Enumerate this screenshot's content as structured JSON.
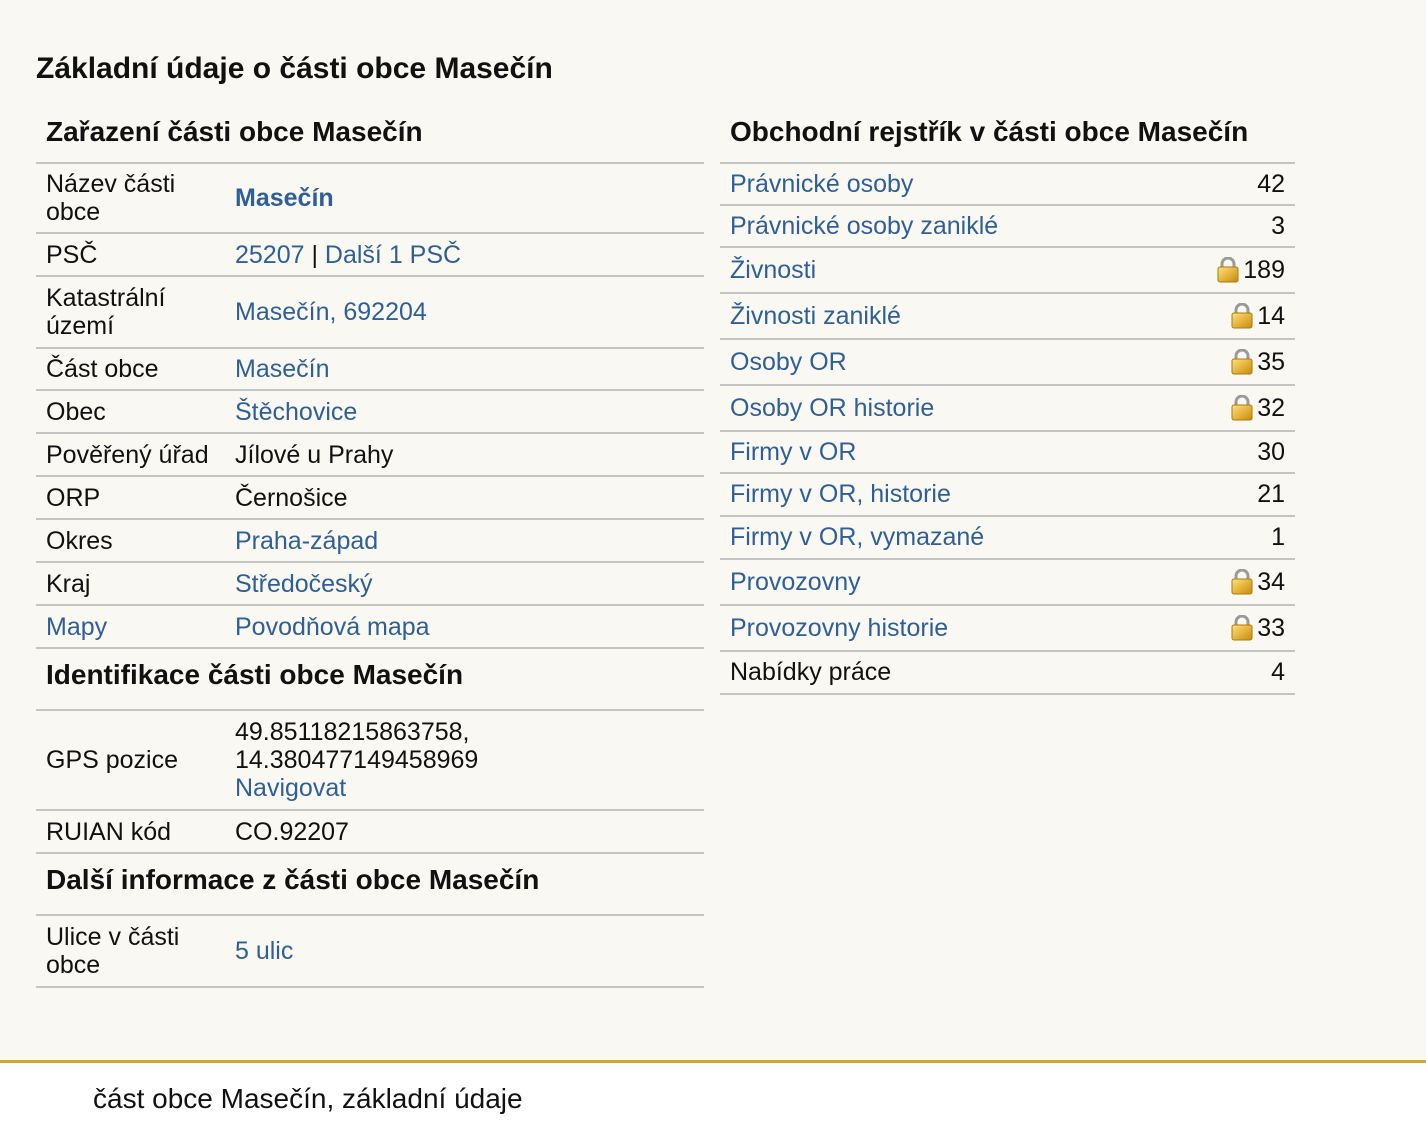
{
  "page_title": "Základní údaje o části obce Masečín",
  "zarazeni": {
    "heading": "Zařazení části obce Masečín",
    "rows": [
      {
        "label": "Název části obce",
        "value": "Masečín"
      },
      {
        "label": "PSČ",
        "value_a": "25207",
        "sep": " | ",
        "value_b": "Další 1 PSČ"
      },
      {
        "label": "Katastrální území",
        "value": "Masečín, 692204"
      },
      {
        "label": "Část obce",
        "value": "Masečín"
      },
      {
        "label": "Obec",
        "value": "Štěchovice"
      },
      {
        "label": "Pověřený úřad",
        "value": "Jílové u Prahy"
      },
      {
        "label": "ORP",
        "value": "Černošice"
      },
      {
        "label": "Okres",
        "value": "Praha-západ"
      },
      {
        "label": "Kraj",
        "value": "Středočeský"
      },
      {
        "label": "Mapy",
        "value": "Povodňová mapa"
      }
    ]
  },
  "identifikace": {
    "heading": "Identifikace části obce Masečín",
    "rows": [
      {
        "label": "GPS pozice",
        "lat": "49.85118215863758,",
        "lon": "14.380477149458969",
        "link": "Navigovat"
      },
      {
        "label": "RUIAN kód",
        "value": "CO.92207"
      }
    ]
  },
  "dalsi": {
    "heading": "Další informace z části obce Masečín",
    "rows": [
      {
        "label": "Ulice v části obce",
        "value": "5 ulic"
      }
    ]
  },
  "rejstrik": {
    "heading": "Obchodní rejstřík v části obce Masečín",
    "rows": [
      {
        "label": "Právnické osoby",
        "count": "42",
        "locked": false
      },
      {
        "label": "Právnické osoby zaniklé",
        "count": "3",
        "locked": false
      },
      {
        "label": "Živnosti",
        "count": "189",
        "locked": true
      },
      {
        "label": "Živnosti zaniklé",
        "count": "14",
        "locked": true
      },
      {
        "label": "Osoby OR",
        "count": "35",
        "locked": true
      },
      {
        "label": "Osoby OR historie",
        "count": "32",
        "locked": true
      },
      {
        "label": "Firmy v OR",
        "count": "30",
        "locked": false
      },
      {
        "label": "Firmy v OR, historie",
        "count": "21",
        "locked": false
      },
      {
        "label": "Firmy v OR, vymazané",
        "count": "1",
        "locked": false
      },
      {
        "label": "Provozovny",
        "count": "34",
        "locked": true
      },
      {
        "label": "Provozovny historie",
        "count": "33",
        "locked": true
      },
      {
        "label": "Nabídky práce",
        "count": "4",
        "locked": false
      }
    ]
  },
  "footer": {
    "text": "část obce Masečín, základní údaje"
  },
  "colors": {
    "link": "#2f5f96",
    "background": "#f9f8f3",
    "footer_accent": "#d1a631",
    "divider": "#c4c4c4"
  },
  "icons": {
    "lock": "lock-icon"
  }
}
